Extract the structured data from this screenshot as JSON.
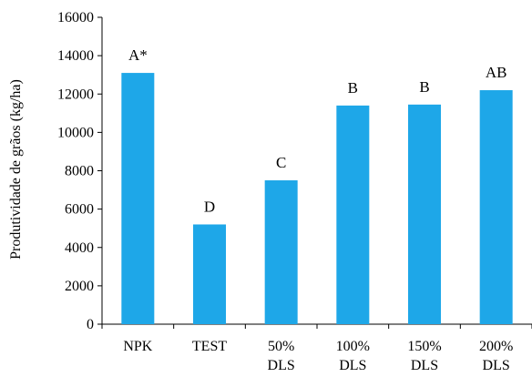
{
  "chart_data": {
    "type": "bar",
    "title": "",
    "xlabel": "",
    "ylabel": "Produtividade de grãos (kg/ha)",
    "ylim": [
      0,
      16000
    ],
    "yticks": [
      0,
      2000,
      4000,
      6000,
      8000,
      10000,
      12000,
      14000,
      16000
    ],
    "categories": [
      [
        "NPK"
      ],
      [
        "TEST"
      ],
      [
        "50%",
        "DLS"
      ],
      [
        "100%",
        "DLS"
      ],
      [
        "150%",
        "DLS"
      ],
      [
        "200%",
        "DLS"
      ]
    ],
    "values": [
      13100,
      5200,
      7500,
      11400,
      11450,
      12200
    ],
    "data_labels": [
      "A*",
      "D",
      "C",
      "B",
      "B",
      "AB"
    ],
    "grid": false,
    "legend": "none",
    "colors": {
      "bar": "#1ea7e8",
      "axis": "#000000"
    }
  }
}
